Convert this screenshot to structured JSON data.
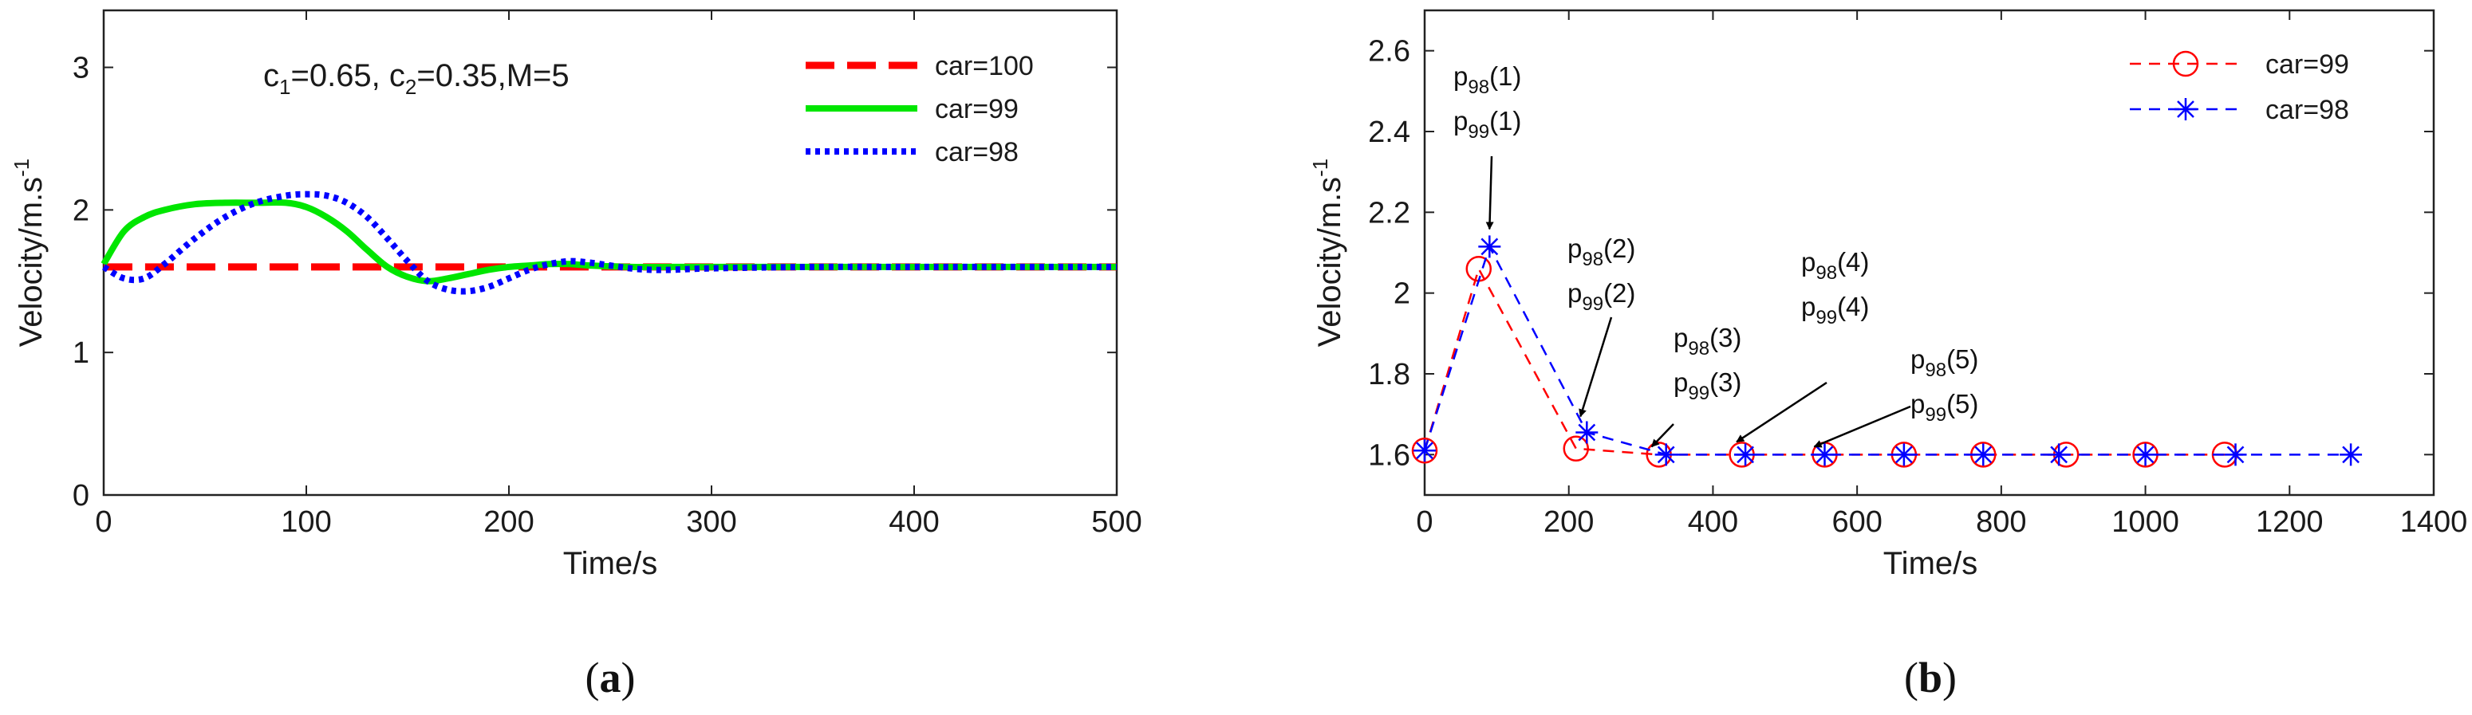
{
  "chart_data": [
    {
      "type": "line",
      "panel_label": "a",
      "annotation": {
        "c_sub_1": "1",
        "c1_value": "=0.65, ",
        "c_sub_2": "2",
        "c2_value": "=0.35,M=5"
      },
      "xlabel": "Time/s",
      "ylabel": "Velocity/m.s",
      "ylabel_sup": "-1",
      "xlim": [
        0,
        500
      ],
      "ylim": [
        0,
        3.4
      ],
      "xticks": [
        0,
        100,
        200,
        300,
        400,
        500
      ],
      "yticks": [
        0,
        1,
        2,
        3
      ],
      "legend_position": "top-right",
      "series": [
        {
          "name": "car=100",
          "color": "#ff0000",
          "style": "dashed",
          "x": [
            0,
            500
          ],
          "y": [
            1.6,
            1.6
          ]
        },
        {
          "name": "car=99",
          "color": "#00e600",
          "style": "solid",
          "x": [
            0,
            10,
            20,
            30,
            45,
            60,
            75,
            90,
            100,
            110,
            120,
            130,
            140,
            150,
            160,
            170,
            180,
            190,
            200,
            210,
            220,
            230,
            240,
            260,
            280,
            300,
            350,
            400,
            500
          ],
          "y": [
            1.62,
            1.85,
            1.95,
            2.0,
            2.04,
            2.05,
            2.05,
            2.05,
            2.02,
            1.95,
            1.85,
            1.72,
            1.6,
            1.53,
            1.5,
            1.52,
            1.55,
            1.58,
            1.6,
            1.61,
            1.62,
            1.62,
            1.61,
            1.6,
            1.6,
            1.6,
            1.6,
            1.6,
            1.6
          ]
        },
        {
          "name": "car=98",
          "color": "#0000ff",
          "style": "dotted",
          "x": [
            0,
            10,
            20,
            30,
            45,
            60,
            75,
            90,
            100,
            110,
            120,
            130,
            140,
            150,
            160,
            170,
            180,
            190,
            200,
            210,
            220,
            230,
            240,
            250,
            260,
            270,
            280,
            300,
            350,
            400,
            500
          ],
          "y": [
            1.6,
            1.52,
            1.52,
            1.62,
            1.8,
            1.95,
            2.05,
            2.1,
            2.11,
            2.1,
            2.05,
            1.95,
            1.8,
            1.64,
            1.5,
            1.44,
            1.43,
            1.46,
            1.52,
            1.58,
            1.62,
            1.64,
            1.63,
            1.61,
            1.59,
            1.58,
            1.58,
            1.59,
            1.6,
            1.6,
            1.6
          ]
        }
      ]
    },
    {
      "type": "line",
      "panel_label": "b",
      "xlabel": "Time/s",
      "ylabel": "Velocity/m.s",
      "ylabel_sup": "-1",
      "xlim": [
        0,
        1400
      ],
      "ylim": [
        1.5,
        2.7
      ],
      "xticks": [
        0,
        200,
        400,
        600,
        800,
        1000,
        1200,
        1400
      ],
      "yticks": [
        1.6,
        1.8,
        2.0,
        2.2,
        2.4,
        2.6
      ],
      "ytick_labels": [
        "1.6",
        "1.8",
        "2",
        "2.2",
        "2.4",
        "2.6"
      ],
      "legend_position": "top-right",
      "series": [
        {
          "name": "car=99",
          "color": "#ff0000",
          "marker": "circle",
          "x": [
            0,
            75,
            210,
            325,
            440,
            555,
            665,
            775,
            890,
            1000,
            1110
          ],
          "y": [
            1.61,
            2.06,
            1.615,
            1.6,
            1.6,
            1.6,
            1.6,
            1.6,
            1.6,
            1.6,
            1.6
          ]
        },
        {
          "name": "car=98",
          "color": "#0000ff",
          "marker": "asterisk",
          "x": [
            0,
            90,
            225,
            335,
            445,
            555,
            665,
            775,
            880,
            1000,
            1125,
            1285
          ],
          "y": [
            1.61,
            2.115,
            1.655,
            1.6,
            1.6,
            1.6,
            1.6,
            1.6,
            1.6,
            1.6,
            1.6,
            1.6
          ]
        }
      ],
      "annotations": [
        {
          "lines": [
            {
              "p": "p",
              "sub": "98",
              "arg": "(1)"
            },
            {
              "p": "p",
              "sub": "99",
              "arg": "(1)"
            }
          ],
          "target_x": 90,
          "target_y": 2.115
        },
        {
          "lines": [
            {
              "p": "p",
              "sub": "98",
              "arg": "(2)"
            },
            {
              "p": "p",
              "sub": "99",
              "arg": "(2)"
            }
          ],
          "target_x": 225,
          "target_y": 1.655
        },
        {
          "lines": [
            {
              "p": "p",
              "sub": "98",
              "arg": "(3)"
            },
            {
              "p": "p",
              "sub": "99",
              "arg": "(3)"
            }
          ],
          "target_x": 335,
          "target_y": 1.6
        },
        {
          "lines": [
            {
              "p": "p",
              "sub": "98",
              "arg": "(4)"
            },
            {
              "p": "p",
              "sub": "99",
              "arg": "(4)"
            }
          ],
          "target_x": 455,
          "target_y": 1.6
        },
        {
          "lines": [
            {
              "p": "p",
              "sub": "98",
              "arg": "(5)"
            },
            {
              "p": "p",
              "sub": "99",
              "arg": "(5)"
            }
          ],
          "target_x": 565,
          "target_y": 1.6
        }
      ]
    }
  ]
}
